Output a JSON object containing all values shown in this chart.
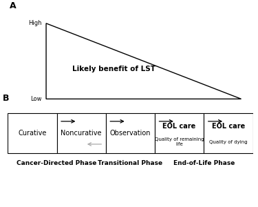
{
  "panel_A_label": "A",
  "panel_B_label": "B",
  "triangle_label": "Likely benefit of LST",
  "y_high": "High",
  "y_low": "Low",
  "box_labels": [
    "Curative",
    "Noncurative",
    "Observation",
    "EOL care\nQuality of remaining\nlife",
    "EOL care\nQuality of dying"
  ],
  "phase_labels": [
    "Cancer-Directed Phase",
    "Transitional Phase",
    "End-of-Life Phase"
  ],
  "bg_color": "#ffffff",
  "line_color": "#000000",
  "text_color": "#000000",
  "arrow_color": "#000000",
  "back_arrow_color": "#aaaaaa",
  "fig_width": 3.75,
  "fig_height": 3.0
}
